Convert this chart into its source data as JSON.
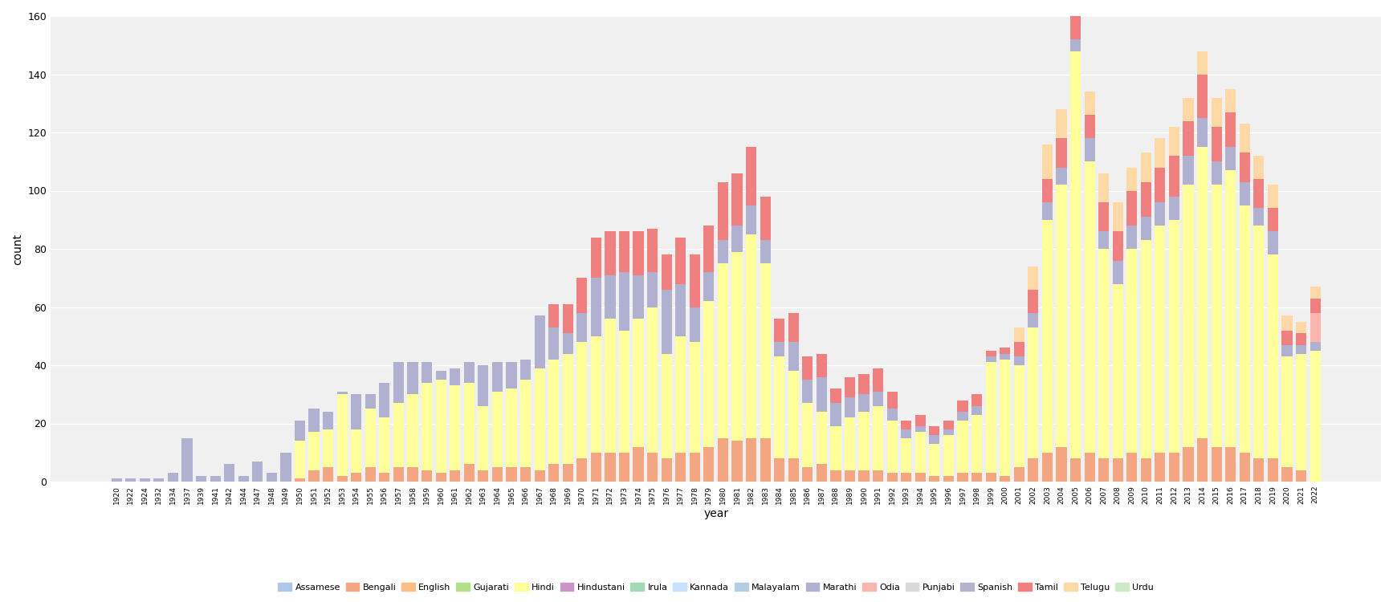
{
  "languages": [
    "Assamese",
    "Bengali",
    "English",
    "Gujarati",
    "Hindi",
    "Hindustani",
    "Irula",
    "Kannada",
    "Malayalam",
    "Marathi",
    "Odia",
    "Punjabi",
    "Spanish",
    "Tamil",
    "Telugu",
    "Urdu"
  ],
  "colors": {
    "Assamese": "#aec6e8",
    "Bengali": "#f4a582",
    "English": "#fdbe85",
    "Gujarati": "#b2df8a",
    "Hindi": "#ffff99",
    "Hindustani": "#c994c7",
    "Irula": "#a1dab4",
    "Kannada": "#c6e2ff",
    "Malayalam": "#b3cde3",
    "Marathi": "#b0b0d0",
    "Odia": "#fbb4ae",
    "Punjabi": "#d9d9d9",
    "Spanish": "#b3b3cc",
    "Tamil": "#f08080",
    "Telugu": "#fed9a6",
    "Urdu": "#ccebc5"
  },
  "ylabel": "count",
  "xlabel": "year",
  "ylim": [
    0,
    160
  ],
  "yticks": [
    0,
    20,
    40,
    60,
    80,
    100,
    120,
    140,
    160
  ],
  "years": [
    1920,
    1922,
    1924,
    1932,
    1934,
    1937,
    1939,
    1941,
    1942,
    1944,
    1947,
    1948,
    1949,
    1950,
    1951,
    1952,
    1953,
    1954,
    1955,
    1956,
    1957,
    1958,
    1959,
    1960,
    1961,
    1962,
    1963,
    1964,
    1965,
    1966,
    1967,
    1968,
    1969,
    1970,
    1971,
    1972,
    1973,
    1974,
    1975,
    1976,
    1977,
    1978,
    1979,
    1980,
    1981,
    1982,
    1983,
    1984,
    1985,
    1986,
    1987,
    1988,
    1989,
    1990,
    1991,
    1992,
    1993,
    1994,
    1995,
    1996,
    1997,
    1998,
    1999,
    2000,
    2001,
    2002,
    2003,
    2004,
    2005,
    2006,
    2007,
    2008,
    2009,
    2010,
    2011,
    2012,
    2013,
    2014,
    2015,
    2016,
    2017,
    2018,
    2019,
    2020,
    2021,
    2022
  ],
  "stacks": {
    "Assamese": [
      0,
      0,
      0,
      0,
      0,
      0,
      0,
      0,
      0,
      0,
      0,
      0,
      0,
      0,
      0,
      0,
      0,
      0,
      0,
      0,
      0,
      0,
      0,
      0,
      0,
      0,
      0,
      0,
      0,
      0,
      0,
      0,
      0,
      0,
      0,
      0,
      0,
      0,
      0,
      0,
      0,
      0,
      0,
      0,
      0,
      0,
      0,
      0,
      0,
      0,
      0,
      0,
      0,
      0,
      0,
      0,
      0,
      0,
      0,
      0,
      0,
      0,
      0,
      0,
      0,
      0,
      0,
      0,
      0,
      0,
      0,
      0,
      0,
      0,
      0,
      0,
      0,
      0,
      0,
      0,
      0,
      0,
      0,
      0,
      0,
      0
    ],
    "Bengali": [
      0,
      0,
      0,
      0,
      0,
      0,
      0,
      0,
      0,
      0,
      0,
      0,
      0,
      1,
      4,
      5,
      2,
      3,
      5,
      3,
      5,
      5,
      4,
      3,
      4,
      6,
      4,
      5,
      5,
      5,
      4,
      6,
      6,
      8,
      10,
      10,
      10,
      12,
      10,
      8,
      10,
      10,
      12,
      15,
      14,
      15,
      15,
      8,
      8,
      5,
      6,
      4,
      4,
      4,
      4,
      3,
      3,
      3,
      2,
      2,
      3,
      3,
      3,
      2,
      5,
      8,
      10,
      12,
      8,
      10,
      8,
      8,
      10,
      8,
      10,
      10,
      12,
      15,
      12,
      12,
      10,
      8,
      8,
      5,
      4,
      0
    ],
    "English": [
      0,
      0,
      0,
      0,
      0,
      0,
      0,
      0,
      0,
      0,
      0,
      0,
      0,
      0,
      0,
      0,
      0,
      0,
      0,
      0,
      0,
      0,
      0,
      0,
      0,
      0,
      0,
      0,
      0,
      0,
      0,
      0,
      0,
      0,
      0,
      0,
      0,
      0,
      0,
      0,
      0,
      0,
      0,
      0,
      0,
      0,
      0,
      0,
      0,
      0,
      0,
      0,
      0,
      0,
      0,
      0,
      0,
      0,
      0,
      0,
      0,
      0,
      0,
      0,
      0,
      0,
      0,
      0,
      0,
      0,
      0,
      0,
      0,
      0,
      0,
      0,
      0,
      0,
      0,
      0,
      0,
      0,
      0,
      0,
      0,
      0
    ],
    "Gujarati": [
      0,
      0,
      0,
      0,
      0,
      0,
      0,
      0,
      0,
      0,
      0,
      0,
      0,
      0,
      0,
      0,
      0,
      0,
      0,
      0,
      0,
      0,
      0,
      0,
      0,
      0,
      0,
      0,
      0,
      0,
      0,
      0,
      0,
      0,
      0,
      0,
      0,
      0,
      0,
      0,
      0,
      0,
      0,
      0,
      0,
      0,
      0,
      0,
      0,
      0,
      0,
      0,
      0,
      0,
      0,
      0,
      0,
      0,
      0,
      0,
      0,
      0,
      0,
      0,
      0,
      0,
      0,
      0,
      0,
      0,
      0,
      0,
      0,
      0,
      0,
      0,
      0,
      0,
      0,
      0,
      0,
      0,
      0,
      0,
      0,
      0
    ],
    "Hindi": [
      0,
      0,
      0,
      0,
      0,
      0,
      0,
      0,
      0,
      0,
      0,
      0,
      0,
      13,
      13,
      13,
      28,
      15,
      20,
      19,
      22,
      25,
      30,
      32,
      29,
      28,
      22,
      26,
      27,
      30,
      35,
      36,
      38,
      40,
      40,
      46,
      42,
      44,
      50,
      36,
      40,
      38,
      50,
      60,
      65,
      70,
      60,
      35,
      30,
      22,
      18,
      15,
      18,
      20,
      22,
      18,
      12,
      14,
      11,
      14,
      18,
      20,
      38,
      40,
      35,
      45,
      80,
      90,
      140,
      100,
      72,
      60,
      70,
      75,
      78,
      80,
      90,
      100,
      90,
      95,
      85,
      80,
      70,
      38,
      40,
      45
    ],
    "Hindustani": [
      0,
      0,
      0,
      0,
      0,
      0,
      0,
      0,
      0,
      0,
      0,
      0,
      0,
      0,
      0,
      0,
      0,
      0,
      0,
      0,
      0,
      0,
      0,
      0,
      0,
      0,
      0,
      0,
      0,
      0,
      0,
      0,
      0,
      0,
      0,
      0,
      0,
      0,
      0,
      0,
      0,
      0,
      0,
      0,
      0,
      0,
      0,
      0,
      0,
      0,
      0,
      0,
      0,
      0,
      0,
      0,
      0,
      0,
      0,
      0,
      0,
      0,
      0,
      0,
      0,
      0,
      0,
      0,
      0,
      0,
      0,
      0,
      0,
      0,
      0,
      0,
      0,
      0,
      0,
      0,
      0,
      0,
      0,
      0,
      0,
      0
    ],
    "Irula": [
      0,
      0,
      0,
      0,
      0,
      0,
      0,
      0,
      0,
      0,
      0,
      0,
      0,
      0,
      0,
      0,
      0,
      0,
      0,
      0,
      0,
      0,
      0,
      0,
      0,
      0,
      0,
      0,
      0,
      0,
      0,
      0,
      0,
      0,
      0,
      0,
      0,
      0,
      0,
      0,
      0,
      0,
      0,
      0,
      0,
      0,
      0,
      0,
      0,
      0,
      0,
      0,
      0,
      0,
      0,
      0,
      0,
      0,
      0,
      0,
      0,
      0,
      0,
      0,
      0,
      0,
      0,
      0,
      0,
      0,
      0,
      0,
      0,
      0,
      0,
      0,
      0,
      0,
      0,
      0,
      0,
      0,
      0,
      0,
      0,
      0
    ],
    "Kannada": [
      0,
      0,
      0,
      0,
      0,
      0,
      0,
      0,
      0,
      0,
      0,
      0,
      0,
      0,
      0,
      0,
      0,
      0,
      0,
      0,
      0,
      0,
      0,
      0,
      0,
      0,
      0,
      0,
      0,
      0,
      0,
      0,
      0,
      0,
      0,
      0,
      0,
      0,
      0,
      0,
      0,
      0,
      0,
      0,
      0,
      0,
      0,
      0,
      0,
      0,
      0,
      0,
      0,
      0,
      0,
      0,
      0,
      0,
      0,
      0,
      0,
      0,
      0,
      0,
      0,
      0,
      0,
      0,
      0,
      0,
      0,
      0,
      0,
      0,
      0,
      0,
      0,
      0,
      0,
      0,
      0,
      0,
      0,
      0,
      0,
      0
    ],
    "Malayalam": [
      0,
      0,
      0,
      0,
      0,
      0,
      0,
      0,
      0,
      0,
      0,
      0,
      0,
      0,
      0,
      0,
      0,
      0,
      0,
      0,
      0,
      0,
      0,
      0,
      0,
      0,
      0,
      0,
      0,
      0,
      0,
      0,
      0,
      0,
      0,
      0,
      0,
      0,
      0,
      0,
      0,
      0,
      0,
      0,
      0,
      0,
      0,
      0,
      0,
      0,
      0,
      0,
      0,
      0,
      0,
      0,
      0,
      0,
      0,
      0,
      0,
      0,
      0,
      0,
      0,
      0,
      0,
      0,
      0,
      0,
      0,
      0,
      0,
      0,
      0,
      0,
      0,
      0,
      0,
      0,
      0,
      0,
      0,
      0,
      0,
      0
    ],
    "Marathi": [
      1,
      1,
      1,
      1,
      3,
      15,
      2,
      2,
      6,
      2,
      7,
      3,
      10,
      7,
      8,
      6,
      1,
      12,
      5,
      12,
      14,
      11,
      7,
      3,
      6,
      7,
      14,
      10,
      9,
      7,
      18,
      11,
      7,
      10,
      20,
      15,
      20,
      15,
      12,
      22,
      18,
      12,
      10,
      8,
      9,
      10,
      8,
      5,
      10,
      8,
      12,
      8,
      7,
      6,
      5,
      4,
      3,
      2,
      3,
      2,
      3,
      3,
      2,
      2,
      3,
      5,
      6,
      6,
      4,
      8,
      6,
      8,
      8,
      8,
      8,
      8,
      10,
      10,
      8,
      8,
      8,
      6,
      8,
      4,
      3,
      3
    ],
    "Odia": [
      0,
      0,
      0,
      0,
      0,
      0,
      0,
      0,
      0,
      0,
      0,
      0,
      0,
      0,
      0,
      0,
      0,
      0,
      0,
      0,
      0,
      0,
      0,
      0,
      0,
      0,
      0,
      0,
      0,
      0,
      0,
      0,
      0,
      0,
      0,
      0,
      0,
      0,
      0,
      0,
      0,
      0,
      0,
      0,
      0,
      0,
      0,
      0,
      0,
      0,
      0,
      0,
      0,
      0,
      0,
      0,
      0,
      0,
      0,
      0,
      0,
      0,
      0,
      0,
      0,
      0,
      0,
      0,
      0,
      0,
      0,
      0,
      0,
      0,
      0,
      0,
      0,
      0,
      0,
      0,
      0,
      0,
      0,
      0,
      0,
      10
    ],
    "Punjabi": [
      0,
      0,
      0,
      0,
      0,
      0,
      0,
      0,
      0,
      0,
      0,
      0,
      0,
      0,
      0,
      0,
      0,
      0,
      0,
      0,
      0,
      0,
      0,
      0,
      0,
      0,
      0,
      0,
      0,
      0,
      0,
      0,
      0,
      0,
      0,
      0,
      0,
      0,
      0,
      0,
      0,
      0,
      0,
      0,
      0,
      0,
      0,
      0,
      0,
      0,
      0,
      0,
      0,
      0,
      0,
      0,
      0,
      0,
      0,
      0,
      0,
      0,
      0,
      0,
      0,
      0,
      0,
      0,
      0,
      0,
      0,
      0,
      0,
      0,
      0,
      0,
      0,
      0,
      0,
      0,
      0,
      0,
      0,
      0,
      0,
      0
    ],
    "Spanish": [
      0,
      0,
      0,
      0,
      0,
      0,
      0,
      0,
      0,
      0,
      0,
      0,
      0,
      0,
      0,
      0,
      0,
      0,
      0,
      0,
      0,
      0,
      0,
      0,
      0,
      0,
      0,
      0,
      0,
      0,
      0,
      0,
      0,
      0,
      0,
      0,
      0,
      0,
      0,
      0,
      0,
      0,
      0,
      0,
      0,
      0,
      0,
      0,
      0,
      0,
      0,
      0,
      0,
      0,
      0,
      0,
      0,
      0,
      0,
      0,
      0,
      0,
      0,
      0,
      0,
      0,
      0,
      0,
      0,
      0,
      0,
      0,
      0,
      0,
      0,
      0,
      0,
      0,
      0,
      0,
      0,
      0,
      0,
      0,
      0,
      0
    ],
    "Tamil": [
      0,
      0,
      0,
      0,
      0,
      0,
      0,
      0,
      0,
      0,
      0,
      0,
      0,
      0,
      0,
      0,
      0,
      0,
      0,
      0,
      0,
      0,
      0,
      0,
      0,
      0,
      0,
      0,
      0,
      0,
      0,
      8,
      10,
      12,
      14,
      15,
      14,
      15,
      15,
      12,
      16,
      18,
      16,
      20,
      18,
      20,
      15,
      8,
      10,
      8,
      8,
      5,
      7,
      7,
      8,
      6,
      3,
      4,
      3,
      3,
      4,
      4,
      2,
      2,
      5,
      8,
      8,
      10,
      8,
      8,
      10,
      10,
      12,
      12,
      12,
      14,
      12,
      15,
      12,
      12,
      10,
      10,
      8,
      5,
      4,
      5
    ],
    "Telugu": [
      0,
      0,
      0,
      0,
      0,
      0,
      0,
      0,
      0,
      0,
      0,
      0,
      0,
      0,
      0,
      0,
      0,
      0,
      0,
      0,
      0,
      0,
      0,
      0,
      0,
      0,
      0,
      0,
      0,
      0,
      0,
      0,
      0,
      0,
      0,
      0,
      0,
      0,
      0,
      0,
      0,
      0,
      0,
      0,
      0,
      0,
      0,
      0,
      0,
      0,
      0,
      0,
      0,
      0,
      0,
      0,
      0,
      0,
      0,
      0,
      0,
      0,
      0,
      0,
      5,
      8,
      12,
      10,
      8,
      8,
      10,
      10,
      8,
      10,
      10,
      10,
      8,
      8,
      10,
      8,
      10,
      8,
      8,
      5,
      4,
      4
    ],
    "Urdu": [
      0,
      0,
      0,
      0,
      0,
      0,
      0,
      0,
      0,
      0,
      0,
      0,
      0,
      0,
      0,
      0,
      0,
      0,
      0,
      0,
      0,
      0,
      0,
      0,
      0,
      0,
      0,
      0,
      0,
      0,
      0,
      0,
      0,
      0,
      0,
      0,
      0,
      0,
      0,
      0,
      0,
      0,
      0,
      0,
      0,
      0,
      0,
      0,
      0,
      0,
      0,
      0,
      0,
      0,
      0,
      0,
      0,
      0,
      0,
      0,
      0,
      0,
      0,
      0,
      0,
      0,
      0,
      0,
      0,
      0,
      0,
      0,
      0,
      0,
      0,
      0,
      0,
      0,
      0,
      0,
      0,
      0,
      0,
      0,
      0,
      0
    ]
  }
}
